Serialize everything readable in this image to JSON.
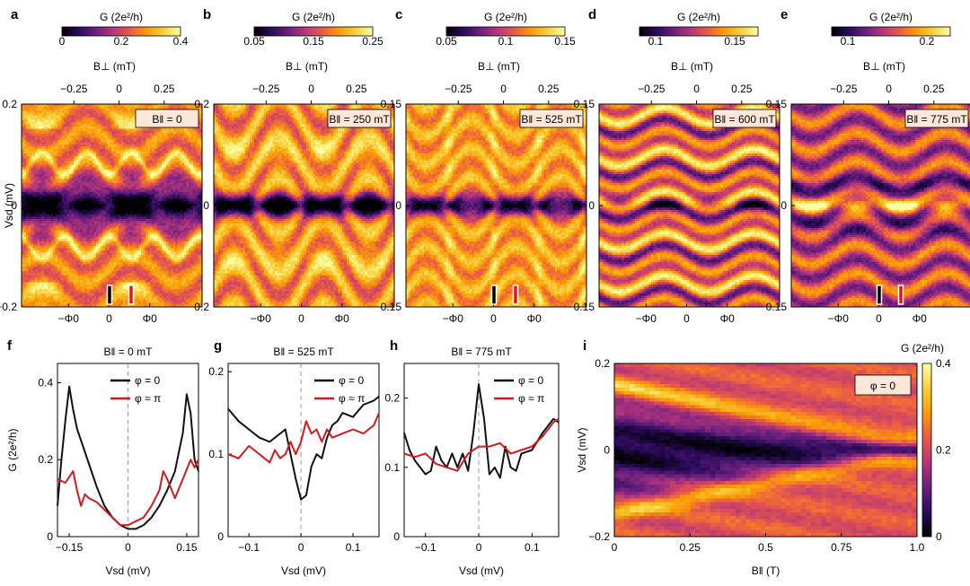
{
  "colors": {
    "map": [
      "#000004",
      "#2b0b5a",
      "#6b1f7e",
      "#b5367a",
      "#ea5a47",
      "#fb9b06",
      "#f7d13c",
      "#fcffa4"
    ],
    "black_curve": "#111111",
    "red_curve": "#d7191c",
    "frame": "#000000"
  },
  "panels_top": [
    {
      "label": "a",
      "cbar_title": "G (2e²/h)",
      "cbar_ticks": [
        "0",
        "0.2",
        "0.4"
      ],
      "btop_label": "B⊥ (mT)",
      "btop_ticks": [
        "−0.25",
        "0",
        "0.25"
      ],
      "ylabel": "Vsd (mV)",
      "yticks": [
        "0.2",
        "0",
        "−0.2"
      ],
      "xticks": [
        "−Φ0",
        "0",
        "Φ0"
      ],
      "field": "B‖ = 0",
      "style": "gap"
    },
    {
      "label": "b",
      "cbar_title": "G (2e²/h)",
      "cbar_ticks": [
        "0.05",
        "0.15",
        "0.25"
      ],
      "btop_label": "B⊥ (mT)",
      "btop_ticks": [
        "−0.25",
        "0",
        "0.25"
      ],
      "ylabel": "",
      "yticks": [
        "0.2",
        "0",
        "−0.2"
      ],
      "xticks": [
        "−Φ0",
        "0",
        "Φ0"
      ],
      "field": "B‖ = 250 mT",
      "style": "narrow"
    },
    {
      "label": "c",
      "cbar_title": "G (2e²/h)",
      "cbar_ticks": [
        "0.05",
        "0.1",
        "0.15"
      ],
      "btop_label": "B⊥ (mT)",
      "btop_ticks": [
        "−0.25",
        "0",
        "0.25"
      ],
      "ylabel": "",
      "yticks": [
        "0.15",
        "0",
        "−0.15"
      ],
      "xticks": [
        "−Φ0",
        "0",
        "Φ0"
      ],
      "field": "B‖ = 525 mT",
      "style": "soft"
    },
    {
      "label": "d",
      "cbar_title": "G (2e²/h)",
      "cbar_ticks": [
        "0.1",
        "0.15"
      ],
      "btop_label": "B⊥ (mT)",
      "btop_ticks": [
        "−0.25",
        "0",
        "0.25"
      ],
      "ylabel": "",
      "yticks": [
        "0.15",
        "0",
        "−0.15"
      ],
      "xticks": [
        "−Φ0",
        "0",
        "Φ0"
      ],
      "field": "B‖ = 600 mT",
      "style": "bands"
    },
    {
      "label": "e",
      "cbar_title": "G (2e²/h)",
      "cbar_ticks": [
        "0.1",
        "0.2"
      ],
      "btop_label": "B⊥ (mT)",
      "btop_ticks": [
        "−0.25",
        "0",
        "0.25"
      ],
      "ylabel": "",
      "yticks": [
        "0.15",
        "0",
        "−0.15"
      ],
      "xticks": [
        "−Φ0",
        "0",
        "Φ0"
      ],
      "field": "B‖ = 775 mT",
      "style": "zbp"
    }
  ],
  "chart_data": [
    {
      "panel": "f",
      "type": "line",
      "title": "B‖ = 0 mT",
      "xlabel": "Vsd (mV)",
      "ylabel": "G (2e²/h)",
      "xlim": [
        -0.18,
        0.18
      ],
      "ylim": [
        0,
        0.45
      ],
      "xticks": [
        -0.15,
        0,
        0.15
      ],
      "yticks": [
        0,
        0.2,
        0.4
      ],
      "xtick_labels": [
        "−0.15",
        "0",
        "0.15"
      ],
      "ytick_labels": [
        "0",
        "0.2",
        "0.4"
      ],
      "legend": [
        "φ = 0",
        "φ ≈ π"
      ],
      "series": [
        {
          "name": "φ = 0",
          "x": [
            -0.18,
            -0.17,
            -0.16,
            -0.15,
            -0.14,
            -0.13,
            -0.12,
            -0.1,
            -0.08,
            -0.06,
            -0.04,
            -0.02,
            0,
            0.02,
            0.04,
            0.06,
            0.08,
            0.1,
            0.12,
            0.13,
            0.14,
            0.15,
            0.16,
            0.17,
            0.18
          ],
          "y": [
            0.08,
            0.2,
            0.3,
            0.39,
            0.33,
            0.28,
            0.25,
            0.19,
            0.13,
            0.08,
            0.05,
            0.03,
            0.02,
            0.02,
            0.03,
            0.05,
            0.08,
            0.12,
            0.17,
            0.22,
            0.27,
            0.37,
            0.32,
            0.2,
            0.17
          ]
        },
        {
          "name": "φ ≈ π",
          "x": [
            -0.18,
            -0.16,
            -0.14,
            -0.13,
            -0.12,
            -0.11,
            -0.1,
            -0.08,
            -0.06,
            -0.04,
            -0.02,
            0,
            0.02,
            0.04,
            0.06,
            0.08,
            0.09,
            0.1,
            0.12,
            0.14,
            0.16,
            0.17,
            0.18
          ],
          "y": [
            0.15,
            0.14,
            0.17,
            0.12,
            0.08,
            0.11,
            0.1,
            0.09,
            0.07,
            0.05,
            0.03,
            0.03,
            0.04,
            0.05,
            0.08,
            0.12,
            0.17,
            0.15,
            0.1,
            0.15,
            0.2,
            0.18,
            0.2
          ]
        }
      ]
    },
    {
      "panel": "g",
      "type": "line",
      "title": "B‖ = 525 mT",
      "xlabel": "Vsd (mV)",
      "ylabel": "",
      "xlim": [
        -0.14,
        0.15
      ],
      "ylim": [
        0,
        0.21
      ],
      "xticks": [
        -0.1,
        0,
        0.1
      ],
      "yticks": [
        0,
        0.1,
        0.2
      ],
      "xtick_labels": [
        "−0.1",
        "0",
        "0.1"
      ],
      "ytick_labels": [
        "0",
        "0.1",
        "0.2"
      ],
      "legend": [
        "φ = 0",
        "φ ≈ π"
      ],
      "series": [
        {
          "name": "φ = 0",
          "x": [
            -0.14,
            -0.12,
            -0.1,
            -0.09,
            -0.08,
            -0.06,
            -0.04,
            -0.03,
            -0.02,
            -0.01,
            0,
            0.01,
            0.02,
            0.03,
            0.04,
            0.05,
            0.06,
            0.07,
            0.08,
            0.1,
            0.12,
            0.14,
            0.15
          ],
          "y": [
            0.155,
            0.14,
            0.13,
            0.125,
            0.12,
            0.115,
            0.125,
            0.13,
            0.1,
            0.07,
            0.045,
            0.05,
            0.085,
            0.1,
            0.095,
            0.12,
            0.135,
            0.14,
            0.15,
            0.145,
            0.16,
            0.165,
            0.17
          ]
        },
        {
          "name": "φ ≈ π",
          "x": [
            -0.14,
            -0.12,
            -0.1,
            -0.08,
            -0.06,
            -0.05,
            -0.04,
            -0.03,
            -0.02,
            -0.01,
            0,
            0.01,
            0.02,
            0.03,
            0.04,
            0.05,
            0.06,
            0.08,
            0.1,
            0.12,
            0.14,
            0.15
          ],
          "y": [
            0.1,
            0.095,
            0.11,
            0.1,
            0.09,
            0.105,
            0.095,
            0.1,
            0.115,
            0.1,
            0.115,
            0.14,
            0.125,
            0.13,
            0.115,
            0.13,
            0.12,
            0.125,
            0.13,
            0.125,
            0.135,
            0.15
          ]
        }
      ]
    },
    {
      "panel": "h",
      "type": "line",
      "title": "B‖ = 775 mT",
      "xlabel": "Vsd (mV)",
      "ylabel": "",
      "xlim": [
        -0.14,
        0.15
      ],
      "ylim": [
        0,
        0.25
      ],
      "xticks": [
        -0.1,
        0,
        0.1
      ],
      "yticks": [
        0,
        0.1,
        0.2
      ],
      "xtick_labels": [
        "−0.1",
        "0",
        "0.1"
      ],
      "ytick_labels": [
        "0",
        "0.1",
        "0.2"
      ],
      "legend": [
        "φ = 0",
        "φ ≈ π"
      ],
      "series": [
        {
          "name": "φ = 0",
          "x": [
            -0.14,
            -0.13,
            -0.12,
            -0.1,
            -0.09,
            -0.08,
            -0.07,
            -0.06,
            -0.05,
            -0.04,
            -0.03,
            -0.02,
            -0.01,
            0,
            0.01,
            0.02,
            0.03,
            0.04,
            0.05,
            0.06,
            0.07,
            0.08,
            0.1,
            0.12,
            0.14,
            0.15
          ],
          "y": [
            0.15,
            0.125,
            0.11,
            0.09,
            0.095,
            0.13,
            0.11,
            0.1,
            0.12,
            0.1,
            0.12,
            0.095,
            0.15,
            0.22,
            0.17,
            0.09,
            0.1,
            0.085,
            0.13,
            0.1,
            0.095,
            0.12,
            0.125,
            0.15,
            0.17,
            0.165
          ]
        },
        {
          "name": "φ ≈ π",
          "x": [
            -0.14,
            -0.12,
            -0.1,
            -0.08,
            -0.06,
            -0.04,
            -0.02,
            0,
            0.02,
            0.04,
            0.06,
            0.08,
            0.1,
            0.12,
            0.14,
            0.15
          ],
          "y": [
            0.12,
            0.115,
            0.12,
            0.105,
            0.1,
            0.095,
            0.12,
            0.13,
            0.13,
            0.135,
            0.12,
            0.125,
            0.13,
            0.145,
            0.165,
            0.17
          ]
        }
      ]
    },
    {
      "panel": "i",
      "type": "heatmap",
      "xlabel": "B‖ (T)",
      "ylabel": "Vsd (mV)",
      "xlim": [
        0,
        1.0
      ],
      "ylim": [
        -0.2,
        0.2
      ],
      "xticks": [
        0,
        0.25,
        0.5,
        0.75,
        1.0
      ],
      "yticks": [
        0.2,
        0,
        -0.2
      ],
      "xtick_labels": [
        "0",
        "0.25",
        "0.5",
        "0.75",
        "1.0"
      ],
      "ytick_labels": [
        "0.2",
        "0",
        "−0.2"
      ],
      "annotation": "φ = 0",
      "colorbar_title": "G (2e²/h)",
      "colorbar_ticks": [
        "0.4",
        "0.2",
        "0"
      ],
      "clim": [
        0,
        0.4
      ]
    }
  ]
}
